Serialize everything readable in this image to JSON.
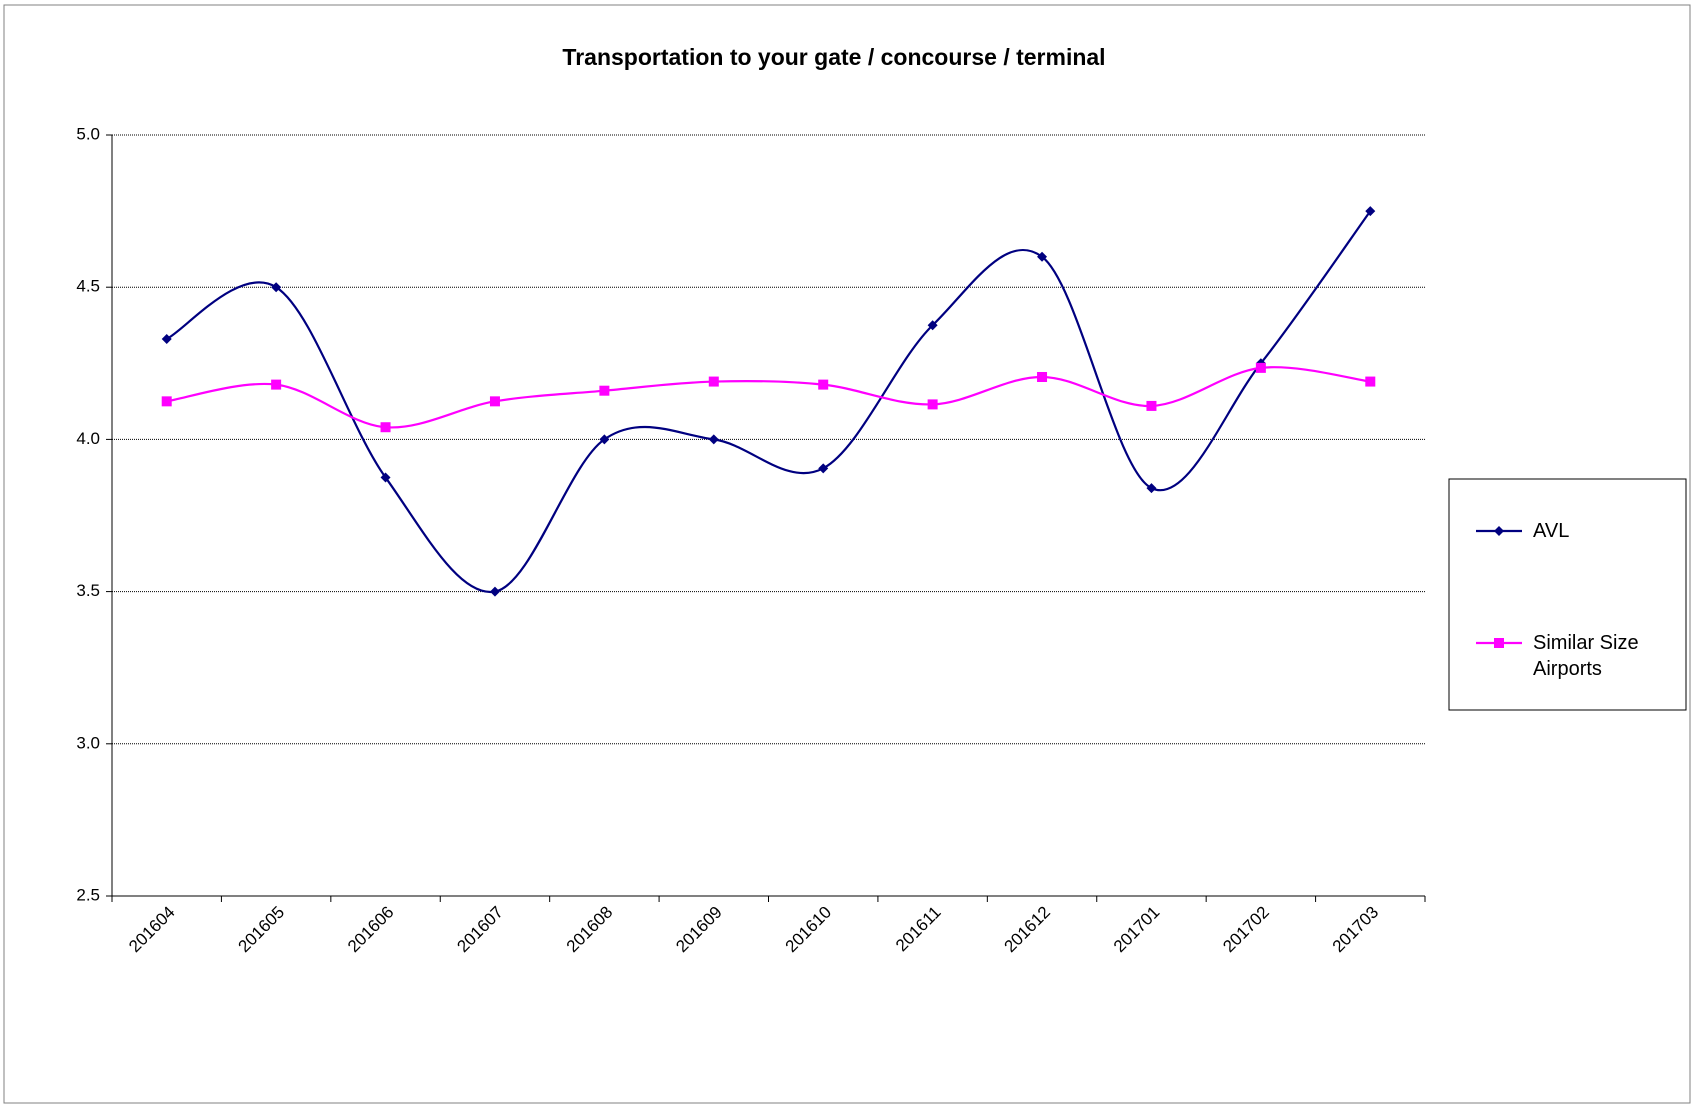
{
  "chart_data": {
    "type": "line",
    "title": "Transportation to your gate / concourse / terminal",
    "categories": [
      "201604",
      "201605",
      "201606",
      "201607",
      "201608",
      "201609",
      "201610",
      "201611",
      "201612",
      "201701",
      "201702",
      "201703"
    ],
    "series": [
      {
        "name": "AVL",
        "color": "#000080",
        "marker": "diamond",
        "values": [
          4.33,
          4.5,
          3.875,
          3.5,
          4.0,
          4.0,
          3.905,
          4.375,
          4.6,
          3.84,
          4.25,
          4.75
        ]
      },
      {
        "name": "Similar Size Airports",
        "color": "#ff00ff",
        "marker": "square",
        "values": [
          4.125,
          4.18,
          4.04,
          4.125,
          4.16,
          4.19,
          4.18,
          4.115,
          4.205,
          4.11,
          4.235,
          4.19
        ]
      }
    ],
    "ylim": [
      2.5,
      5
    ],
    "yticks": [
      {
        "value": 2.5,
        "label": "2.5"
      },
      {
        "value": 3,
        "label": "3.0"
      },
      {
        "value": 3.5,
        "label": "3.5"
      },
      {
        "value": 4,
        "label": "4.0"
      },
      {
        "value": 4.5,
        "label": "4.5"
      },
      {
        "value": 5,
        "label": "5.0"
      }
    ],
    "grid": true,
    "smooth": true,
    "legend": "right"
  }
}
